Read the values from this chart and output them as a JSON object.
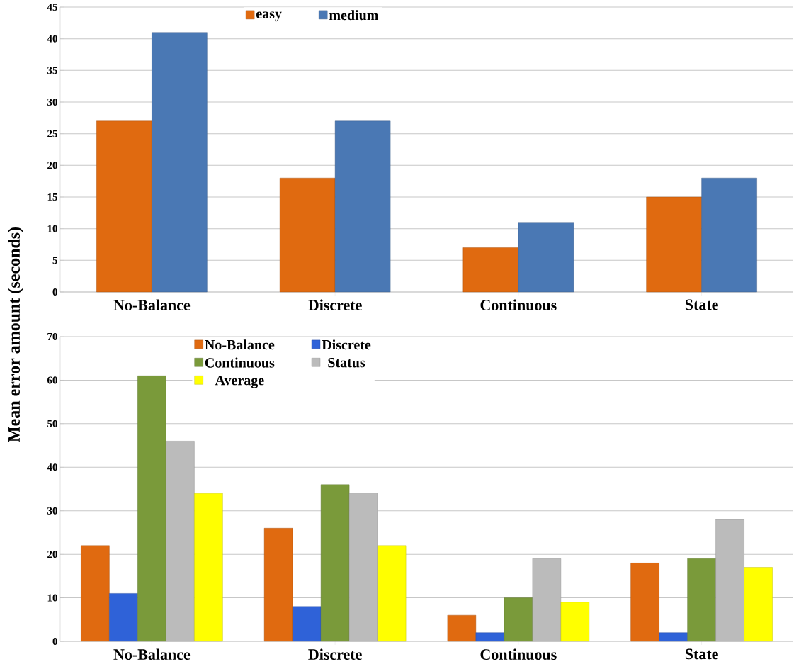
{
  "chart_data": [
    {
      "type": "bar",
      "ylabel": "Mean error amount (seconds)",
      "categories": [
        "No-Balance",
        "Discrete",
        "Continuous",
        "State"
      ],
      "series": [
        {
          "name": "easy",
          "color": "#e06a10",
          "values": [
            27,
            18,
            7,
            15
          ]
        },
        {
          "name": "medium",
          "color": "#4a78b4",
          "values": [
            41,
            27,
            11,
            18
          ]
        }
      ],
      "ylim": [
        0,
        45
      ],
      "yticks": [
        0,
        5,
        10,
        15,
        20,
        25,
        30,
        35,
        40,
        45
      ],
      "grid": "y",
      "legend": "top"
    },
    {
      "type": "bar",
      "categories": [
        "No-Balance",
        "Discrete",
        "Continuous",
        "State"
      ],
      "series": [
        {
          "name": "No-Balance",
          "color": "#e06a10",
          "values": [
            22,
            26,
            6,
            18
          ]
        },
        {
          "name": "Discrete",
          "color": "#2f62d8",
          "values": [
            11,
            8,
            2,
            2
          ]
        },
        {
          "name": "Continuous",
          "color": "#7a9a3a",
          "values": [
            61,
            36,
            10,
            19
          ]
        },
        {
          "name": "Status",
          "color": "#bbbbbb",
          "values": [
            46,
            34,
            19,
            28
          ]
        },
        {
          "name": "Average",
          "color": "#ffff00",
          "values": [
            34,
            22,
            9,
            17
          ]
        }
      ],
      "ylim": [
        0,
        70
      ],
      "yticks": [
        0,
        10,
        20,
        30,
        40,
        50,
        60,
        70
      ],
      "grid": "y",
      "legend": "top"
    }
  ]
}
